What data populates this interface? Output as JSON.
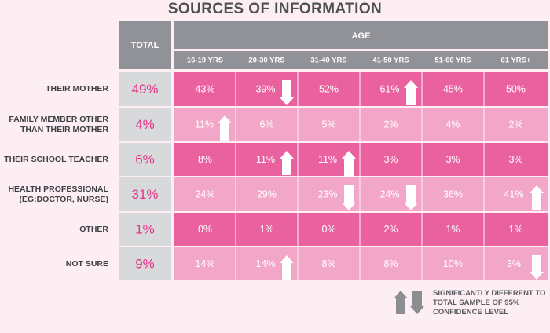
{
  "chart_data": {
    "type": "table",
    "title": "SOURCES OF INFORMATION",
    "total_header": "TOTAL",
    "age_header": "AGE",
    "columns": [
      "16-19 YRS",
      "20-30 YRS",
      "31-40 YRS",
      "41-50 YRS",
      "51-60 YRS",
      "61 YRS+"
    ],
    "rows": [
      {
        "label": "THEIR MOTHER",
        "total": "49%",
        "values": [
          "43%",
          "39%",
          "52%",
          "61%",
          "45%",
          "50%"
        ],
        "flags": [
          "",
          "down",
          "",
          "up",
          "",
          ""
        ]
      },
      {
        "label": "FAMILY MEMBER OTHER THAN THEIR MOTHER",
        "total": "4%",
        "values": [
          "11%",
          "6%",
          "5%",
          "2%",
          "4%",
          "2%"
        ],
        "flags": [
          "up",
          "",
          "",
          "",
          "",
          ""
        ]
      },
      {
        "label": "THEIR SCHOOL TEACHER",
        "total": "6%",
        "values": [
          "8%",
          "11%",
          "11%",
          "3%",
          "3%",
          "3%"
        ],
        "flags": [
          "",
          "up",
          "up",
          "",
          "",
          ""
        ]
      },
      {
        "label": "HEALTH PROFESSIONAL (EG:DOCTOR, NURSE)",
        "total": "31%",
        "values": [
          "24%",
          "29%",
          "23%",
          "24%",
          "36%",
          "41%"
        ],
        "flags": [
          "",
          "",
          "down",
          "down",
          "",
          "up"
        ]
      },
      {
        "label": "OTHER",
        "total": "1%",
        "values": [
          "0%",
          "1%",
          "0%",
          "2%",
          "1%",
          "1%"
        ],
        "flags": [
          "",
          "",
          "",
          "",
          "",
          ""
        ]
      },
      {
        "label": "NOT SURE",
        "total": "9%",
        "values": [
          "14%",
          "14%",
          "8%",
          "8%",
          "10%",
          "3%"
        ],
        "flags": [
          "",
          "up",
          "",
          "",
          "",
          "down"
        ]
      }
    ],
    "legend": "SIGNIFICANTLY DIFFERENT TO TOTAL SAMPLE OF 95% CONFIDENCE LEVEL",
    "colors": {
      "header": "#909297",
      "header_text": "#ffffff",
      "total_cell": "#d8d9db",
      "total_text": "#e4338a",
      "cell_dark": "#e9629f",
      "cell_light": "#f3a7c8",
      "cell_text": "#ffffff",
      "arrow": "#ffffff",
      "legend_arrow": "#8c8e92"
    }
  }
}
